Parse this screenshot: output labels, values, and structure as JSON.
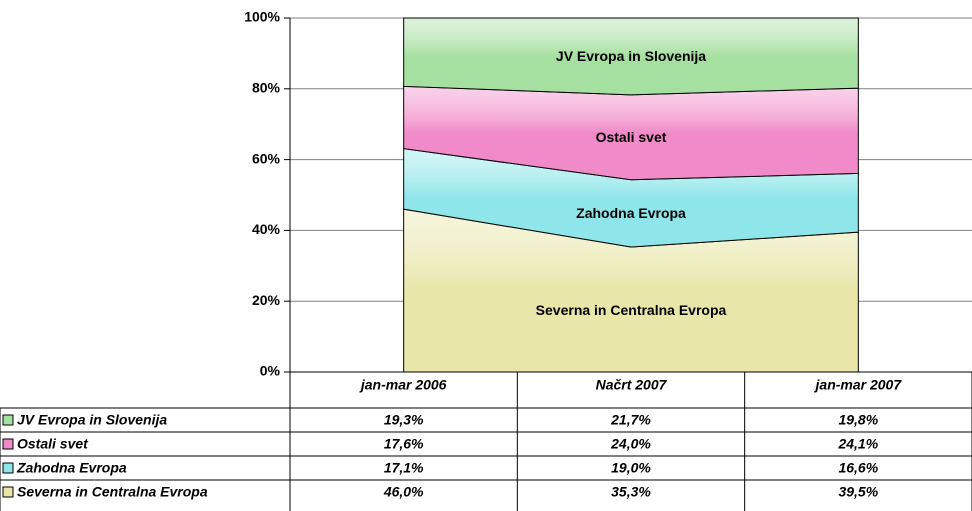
{
  "chart_data": {
    "type": "stacked_area",
    "categories": [
      "jan-mar 2006",
      "Načrt 2007",
      "jan-mar 2007"
    ],
    "series": [
      {
        "name": "Severna in Centralna Evropa",
        "color": "#e8e6a8",
        "values": [
          46.0,
          35.3,
          39.5
        ],
        "value_labels": [
          "46,0%",
          "35,3%",
          "39,5%"
        ]
      },
      {
        "name": "Zahodna Evropa",
        "color": "#8fe6ea",
        "values": [
          17.1,
          19.0,
          16.6
        ],
        "value_labels": [
          "17,1%",
          "19,0%",
          "16,6%"
        ]
      },
      {
        "name": "Ostali svet",
        "color": "#f08ac8",
        "values": [
          17.6,
          24.0,
          24.1
        ],
        "value_labels": [
          "17,6%",
          "24,0%",
          "24,1%"
        ]
      },
      {
        "name": "JV Evropa in Slovenija",
        "color": "#a6e0a0",
        "values": [
          19.3,
          21.7,
          19.8
        ],
        "value_labels": [
          "19,3%",
          "21,7%",
          "19,8%"
        ]
      }
    ],
    "ylim": [
      0,
      100
    ],
    "yticks": [
      {
        "value": 0,
        "label": "0%"
      },
      {
        "value": 20,
        "label": "20%"
      },
      {
        "value": 40,
        "label": "40%"
      },
      {
        "value": 60,
        "label": "60%"
      },
      {
        "value": 80,
        "label": "80%"
      },
      {
        "value": 100,
        "label": "100%"
      }
    ],
    "grid": true,
    "data_table": true
  }
}
